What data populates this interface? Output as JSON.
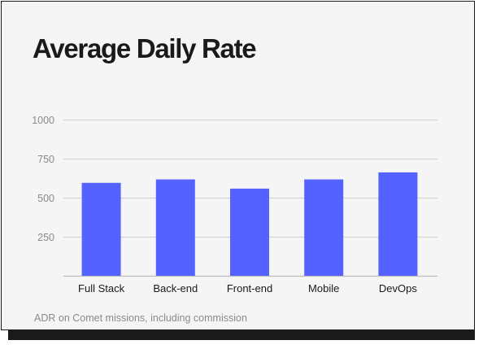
{
  "colors": {
    "bar": "#5463ff",
    "gridline": "#d4d4d4",
    "baseline": "#bdbdbd",
    "tick_text": "#8a8a8a",
    "category_text": "#1a1a1a",
    "title_text": "#1a1a1a",
    "card_background": "#f5f5f5",
    "shadow": "#1a1a1a"
  },
  "chart_data": {
    "type": "bar",
    "title": "Average Daily Rate",
    "caption": "ADR on Comet missions, including commission",
    "xlabel": "",
    "ylabel": "",
    "categories": [
      "Full Stack",
      "Back-end",
      "Front-end",
      "Mobile",
      "DevOps"
    ],
    "values": [
      595,
      617,
      558,
      617,
      662
    ],
    "ylim": [
      0,
      1000
    ],
    "yticks": [
      250,
      500,
      750,
      1000
    ],
    "ytick_labels": [
      "250",
      "500",
      "750",
      "1000"
    ],
    "grid": true,
    "legend": "none"
  }
}
